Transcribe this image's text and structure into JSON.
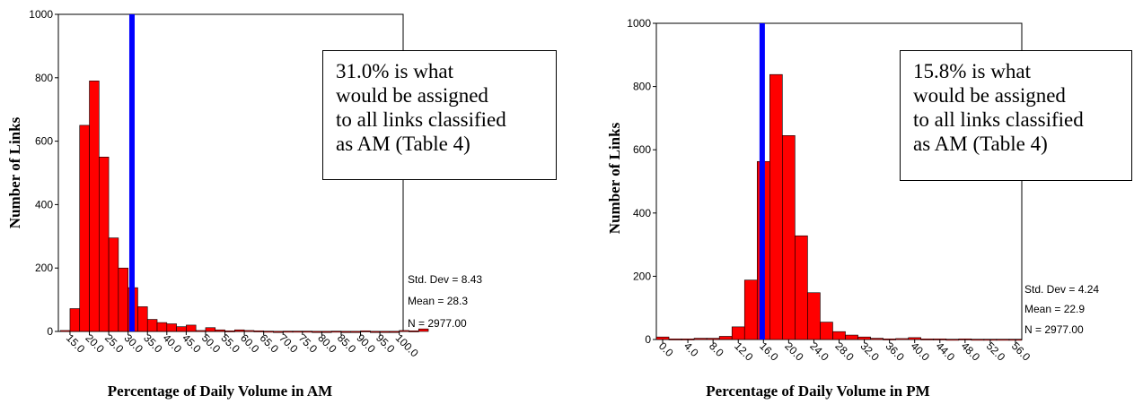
{
  "chart_data": [
    {
      "type": "bar",
      "xlabel": "Percentage of Daily Volume in AM",
      "ylabel": "Number of Links",
      "ylim": [
        0,
        1000
      ],
      "yticks": [
        "0",
        "200",
        "400",
        "600",
        "800",
        "1000"
      ],
      "xticks": [
        "15.0",
        "20.0",
        "25.0",
        "30.0",
        "35.0",
        "40.0",
        "45.0",
        "50.0",
        "55.0",
        "60.0",
        "65.0",
        "70.0",
        "75.0",
        "80.0",
        "85.0",
        "90.0",
        "95.0",
        "100.0"
      ],
      "bin_start": 12.5,
      "bin_width": 2.5,
      "x_range": [
        12.0,
        101.0
      ],
      "values": [
        3,
        72,
        650,
        790,
        550,
        295,
        200,
        138,
        78,
        38,
        28,
        24,
        15,
        20,
        3,
        12,
        5,
        2,
        5,
        3,
        2,
        1,
        0,
        1,
        1,
        1,
        0,
        0,
        1,
        0,
        0,
        2,
        0,
        0,
        0,
        3,
        2,
        8
      ],
      "reference_line_x": 31.0,
      "callout": [
        "31.0% is what",
        "would be assigned",
        "to all links classified",
        "as AM (Table 4)"
      ],
      "stats": [
        "Std. Dev = 8.43",
        "Mean = 28.3",
        "N = 2977.00"
      ],
      "bar_color": "#ff0000",
      "line_color": "#0000ff"
    },
    {
      "type": "bar",
      "xlabel": "Percentage of Daily Volume in PM",
      "ylabel": "Number of Links",
      "ylim": [
        0,
        1000
      ],
      "yticks": [
        "0",
        "200",
        "400",
        "600",
        "800",
        "1000"
      ],
      "xticks": [
        "0.0",
        "4.0",
        "8.0",
        "12.0",
        "16.0",
        "20.0",
        "24.0",
        "28.0",
        "32.0",
        "36.0",
        "40.0",
        "44.0",
        "48.0",
        "52.0",
        "56.0"
      ],
      "bin_start": -1.0,
      "bin_width": 2.0,
      "x_range": [
        -1.0,
        57.0
      ],
      "values": [
        8,
        2,
        2,
        4,
        4,
        10,
        40,
        188,
        563,
        838,
        645,
        328,
        148,
        55,
        25,
        14,
        8,
        4,
        2,
        3,
        6,
        2,
        2,
        1,
        2,
        1,
        1,
        1,
        1
      ],
      "reference_line_x": 15.8,
      "callout": [
        "15.8% is what",
        "would be assigned",
        "to all links classified",
        "as AM (Table 4)"
      ],
      "stats": [
        "Std. Dev = 4.24",
        "Mean = 22.9",
        "N = 2977.00"
      ],
      "bar_color": "#ff0000",
      "line_color": "#0000ff"
    }
  ]
}
